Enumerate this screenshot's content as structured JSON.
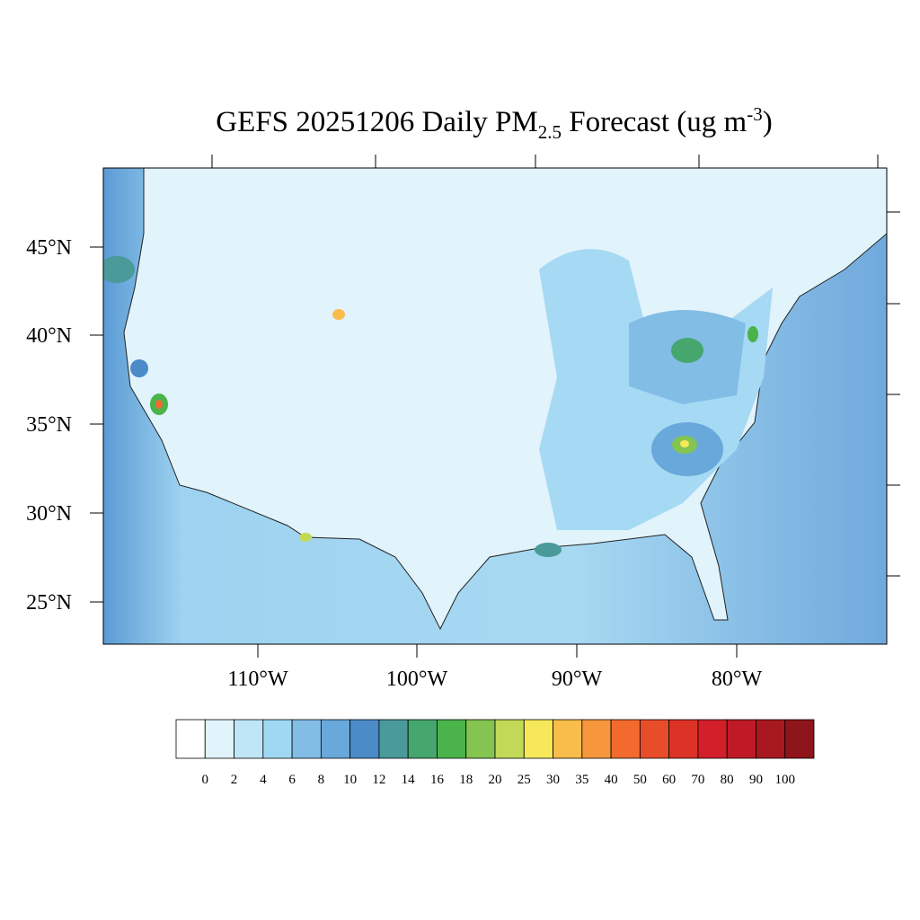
{
  "title": {
    "main": "GEFS 20251206 Daily PM",
    "subscript": "2.5",
    "middle": " Forecast (ug m",
    "superscript": "-3",
    "end": ")"
  },
  "map": {
    "lat_labels": [
      "45°N",
      "40°N",
      "35°N",
      "30°N",
      "25°N"
    ],
    "lon_labels": [
      "110°W",
      "100°W",
      "90°W",
      "80°W"
    ]
  },
  "colorbar": {
    "levels": [
      0,
      2,
      4,
      6,
      8,
      10,
      12,
      14,
      16,
      18,
      20,
      25,
      30,
      35,
      40,
      50,
      60,
      70,
      80,
      90,
      100
    ],
    "colors": [
      "#ffffff",
      "#e1f3fb",
      "#bfe6f7",
      "#a0d8f3",
      "#82bde6",
      "#68a8da",
      "#4a8bc8",
      "#4a9a9a",
      "#45a66e",
      "#4ab34a",
      "#84c450",
      "#c2d958",
      "#f7e85a",
      "#f8bd4a",
      "#f6973c",
      "#f26a2e",
      "#e84d2a",
      "#dc3327",
      "#d21f2a",
      "#bf1a25",
      "#a8181f",
      "#8e1519"
    ]
  }
}
